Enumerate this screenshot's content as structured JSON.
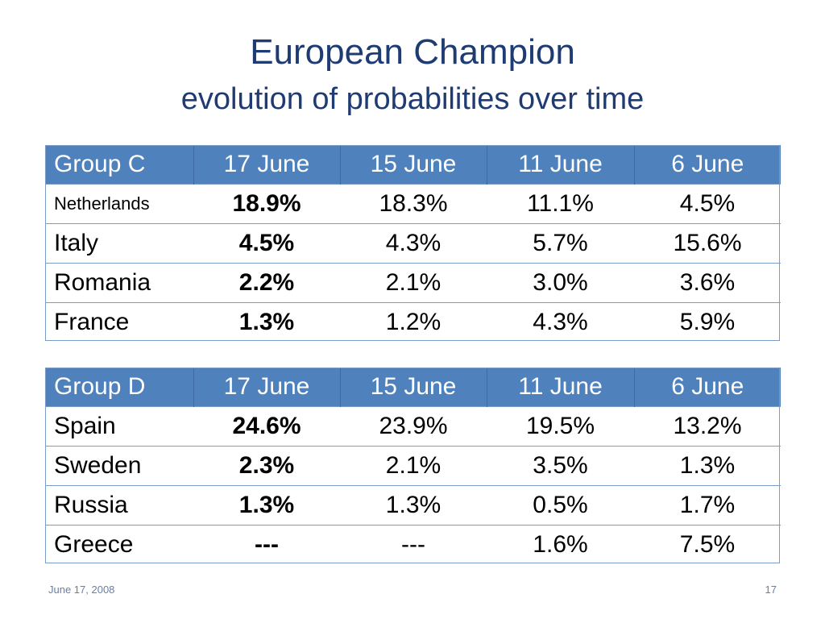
{
  "title": "European Champion",
  "subtitle": "evolution of probabilities over time",
  "tables": [
    {
      "header": [
        "Group C",
        "17 June",
        "15 June",
        "11 June",
        "6 June"
      ],
      "rows": [
        [
          "Netherlands",
          "18.9%",
          "18.3%",
          "11.1%",
          "4.5%"
        ],
        [
          "Italy",
          "4.5%",
          "4.3%",
          "5.7%",
          "15.6%"
        ],
        [
          "Romania",
          "2.2%",
          "2.1%",
          "3.0%",
          "3.6%"
        ],
        [
          "France",
          "1.3%",
          "1.2%",
          "4.3%",
          "5.9%"
        ]
      ]
    },
    {
      "header": [
        "Group D",
        "17 June",
        "15 June",
        "11 June",
        "6 June"
      ],
      "rows": [
        [
          "Spain",
          "24.6%",
          "23.9%",
          "19.5%",
          "13.2%"
        ],
        [
          "Sweden",
          "2.3%",
          "2.1%",
          "3.5%",
          "1.3%"
        ],
        [
          "Russia",
          "1.3%",
          "1.3%",
          "0.5%",
          "1.7%"
        ],
        [
          "Greece",
          "---",
          "---",
          "1.6%",
          "7.5%"
        ]
      ]
    }
  ],
  "footer": {
    "date": "June 17, 2008",
    "page": "17"
  },
  "colors": {
    "header_bg": "#4f81bd",
    "title": "#1f3b73",
    "border": "#7a9cc6"
  }
}
